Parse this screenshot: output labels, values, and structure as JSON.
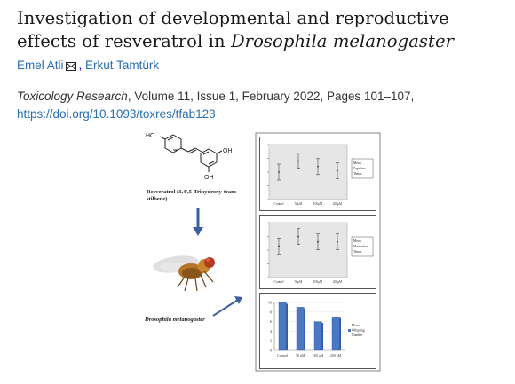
{
  "article": {
    "title_part1": "Investigation of developmental and reproductive effects of resveratrol in ",
    "title_species": "Drosophila melanogaster",
    "author1": "Emel Atli",
    "author_sep": ", ",
    "author2": "Erkut Tamtürk",
    "journal": "Toxicology Research",
    "citation_rest": ", Volume 11, Issue 1, February 2022, Pages 101–107,",
    "doi": "https://doi.org/10.1093/toxres/tfab123"
  },
  "graphical_abstract": {
    "chem_label": "Resveratrol (3,4',5-Trihydroxy-trans-stilbene)",
    "fly_label": "Drosophila melanogaster",
    "atom_ho": "HO",
    "atom_oh1": "OH",
    "atom_oh2": "OH",
    "panel1_legend": [
      "Mean",
      "Pupation",
      "Times"
    ],
    "panel2_legend": [
      "Mean",
      "Maturation",
      "Times"
    ],
    "panel3_legend": [
      "Mean",
      "Offspring",
      "Number"
    ],
    "categories_small": [
      "Control",
      "50μM",
      "100μM",
      "200μM"
    ],
    "colors": {
      "bar": "#4a78c2",
      "bar_dark": "#2e5a9f",
      "fly_body": "#c9862f"
    }
  },
  "chart_data": [
    {
      "type": "scatter",
      "title": "",
      "xlabel": "",
      "ylabel": "",
      "categories": [
        "Control",
        "50μM",
        "100μM",
        "200μM"
      ],
      "series": [
        {
          "name": "Mean Pupation Times",
          "values": [
            6.0,
            6.8,
            6.4,
            6.1
          ]
        }
      ],
      "ylim": [
        4,
        8
      ]
    },
    {
      "type": "scatter",
      "title": "",
      "xlabel": "",
      "ylabel": "",
      "categories": [
        "Control",
        "50μM",
        "100μM",
        "200μM"
      ],
      "series": [
        {
          "name": "Mean Maturation Times",
          "values": [
            10.3,
            11.0,
            10.6,
            10.6
          ]
        }
      ],
      "ylim": [
        8,
        12
      ]
    },
    {
      "type": "bar",
      "title": "",
      "xlabel": "",
      "ylabel": "",
      "categories": [
        "Control",
        "50 μM",
        "100 μM",
        "200 μM"
      ],
      "series": [
        {
          "name": "Mean Offspring Number",
          "values": [
            10,
            9,
            6,
            7
          ]
        }
      ],
      "ylim": [
        0,
        10
      ],
      "yticks": [
        "0",
        "2",
        "4",
        "6",
        "8",
        "10"
      ]
    }
  ]
}
